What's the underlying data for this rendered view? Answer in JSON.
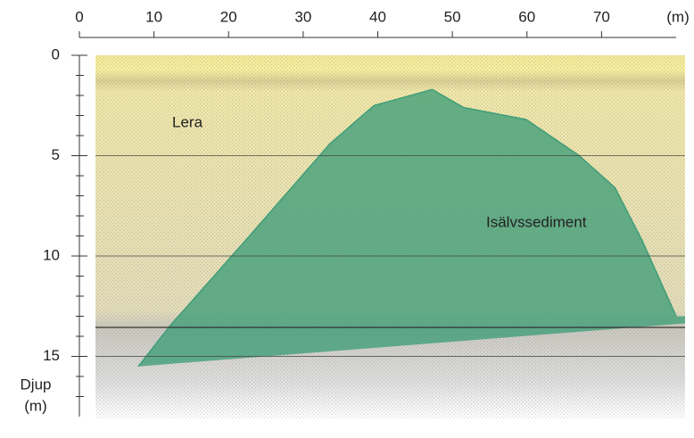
{
  "chart_data": {
    "type": "profile",
    "x_label": "(m)",
    "y_label_lines": [
      "Djup",
      "(m)"
    ],
    "xlim": [
      0,
      80
    ],
    "xticks": [
      0,
      10,
      20,
      30,
      40,
      50,
      60,
      70
    ],
    "ylim": [
      0,
      18
    ],
    "yticks": [
      0,
      5,
      10,
      15
    ],
    "grid": true,
    "annotations": [
      "Lera",
      "Isälvssediment"
    ],
    "series": [
      {
        "color": "#3f9e78",
        "x": [
          7.9,
          12.1,
          22.8,
          33.6,
          39.5,
          47.3,
          51.5,
          59.9,
          67.0,
          71.8,
          75.4,
          80
        ],
        "values": [
          15.5,
          13.5,
          9.0,
          4.4,
          2.5,
          1.7,
          2.6,
          3.2,
          5.0,
          6.6,
          9.2,
          13.0
        ]
      }
    ]
  }
}
